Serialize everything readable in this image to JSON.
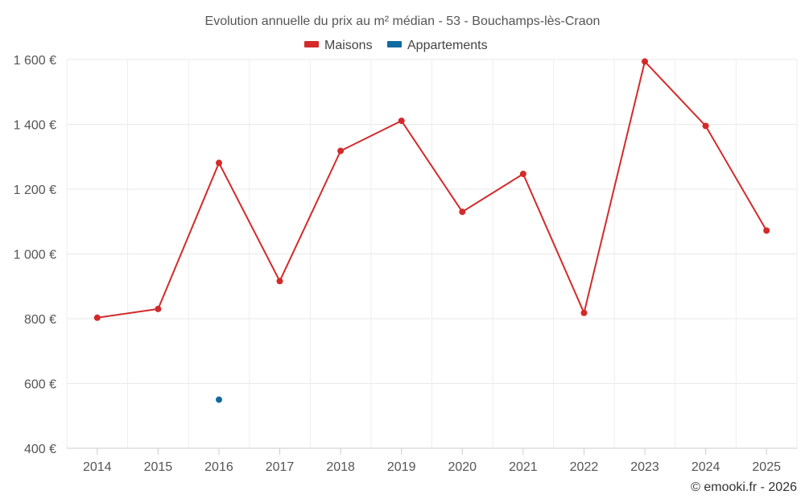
{
  "chart_data": {
    "type": "line",
    "title": "Evolution annuelle du prix au m² médian - 53 - Bouchamps-lès-Craon",
    "categories": [
      "2014",
      "2015",
      "2016",
      "2017",
      "2018",
      "2019",
      "2020",
      "2021",
      "2022",
      "2023",
      "2024",
      "2025"
    ],
    "ylim": [
      400,
      1600
    ],
    "yticks": [
      400,
      600,
      800,
      1000,
      1200,
      1400,
      1600
    ],
    "ytick_labels": [
      "400 €",
      "600 €",
      "800 €",
      "1 000 €",
      "1 200 €",
      "1 400 €",
      "1 600 €"
    ],
    "grid": true,
    "legend_position": "top-center",
    "series": [
      {
        "name": "Maisons",
        "color": "#d42a2a",
        "values": [
          803,
          830,
          1281,
          916,
          1318,
          1411,
          1130,
          1247,
          818,
          1594,
          1395,
          1072
        ]
      },
      {
        "name": "Appartements",
        "color": "#0f6aa0",
        "values": [
          null,
          null,
          550,
          null,
          null,
          null,
          null,
          null,
          null,
          null,
          null,
          null
        ]
      }
    ],
    "credit": "© emooki.fr - 2026"
  }
}
